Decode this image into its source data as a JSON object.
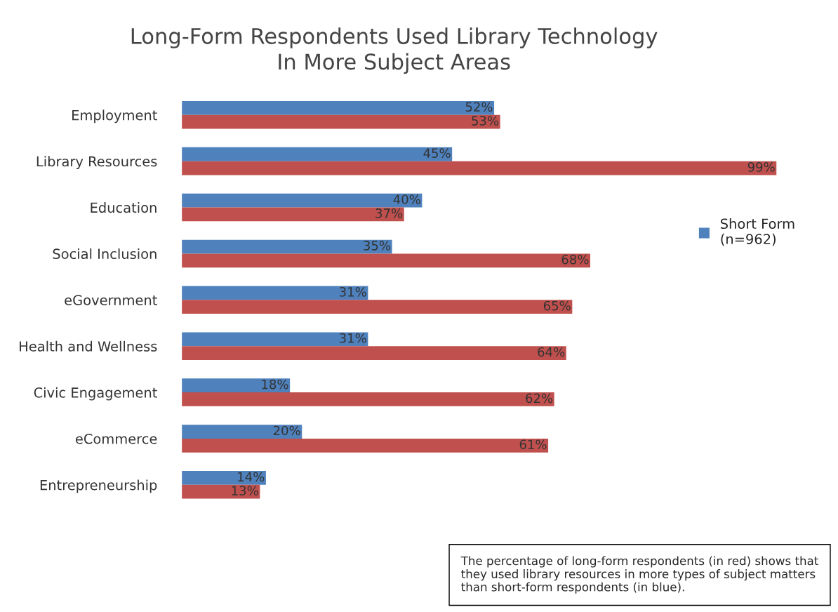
{
  "chart_data": {
    "type": "bar",
    "orientation": "horizontal",
    "title": "Long-Form Respondents Used Library Technology\nIn More Subject Areas",
    "categories": [
      "Employment",
      "Library Resources",
      "Education",
      "Social Inclusion",
      "eGovernment",
      "Health and Wellness",
      "Civic Engagement",
      "eCommerce",
      "Entrepreneurship"
    ],
    "series": [
      {
        "name": "Short Form\n(n=962)",
        "color": "#4f81bd",
        "values": [
          52,
          45,
          40,
          35,
          31,
          31,
          18,
          20,
          14
        ],
        "value_labels": [
          "52%",
          "45%",
          "40%",
          "35%",
          "31%",
          "31%",
          "18%",
          "20%",
          "14%"
        ]
      },
      {
        "color": "#c0504d",
        "values": [
          53,
          99,
          37,
          68,
          65,
          64,
          62,
          61,
          13
        ],
        "value_labels": [
          "53%",
          "99%",
          "37%",
          "68%",
          "65%",
          "64%",
          "62%",
          "61%",
          "13%"
        ]
      }
    ],
    "legend": "right",
    "grid": false,
    "annotations": [
      "The percentage of long-form respondents (in red) shows that they used library resources in more types of subject matters than short-form respondents (in blue)."
    ]
  }
}
